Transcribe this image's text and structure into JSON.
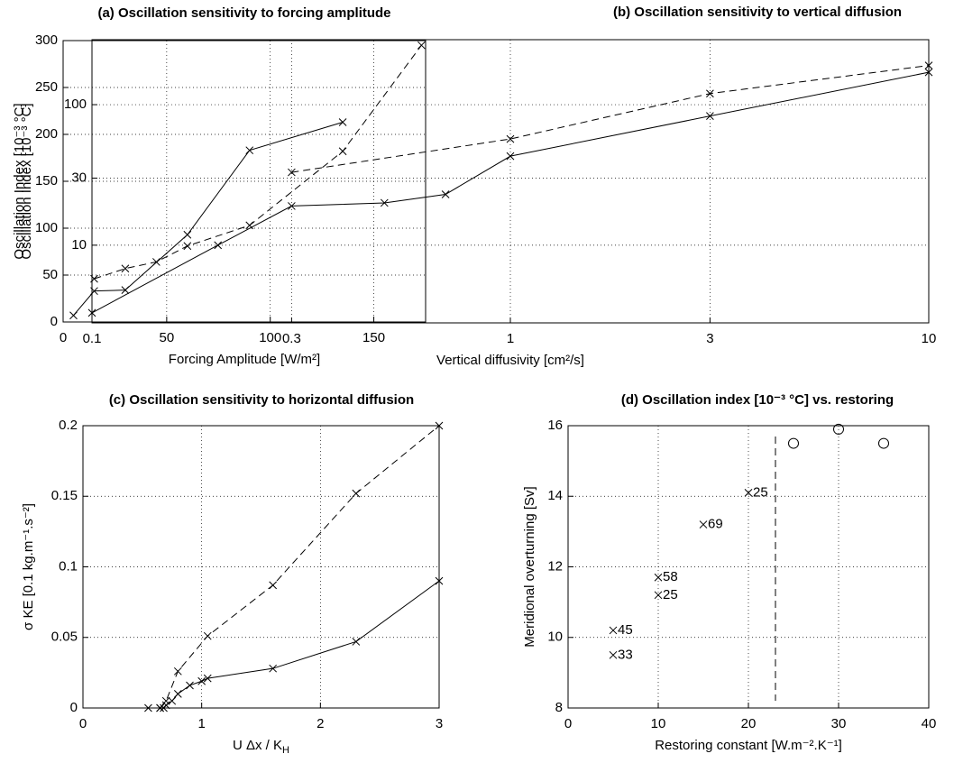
{
  "chart_data": [
    {
      "type": "line",
      "title": "(a) Oscillation sensitivity to forcing amplitude",
      "xlabel": "Forcing Amplitude  [W/m²]",
      "ylabel": "Oscillation Index  [10⁻³ °C]",
      "xlim": [
        0,
        175
      ],
      "ylim": [
        0,
        300
      ],
      "xticks": [
        0,
        50,
        100,
        150
      ],
      "yticks": [
        0,
        50,
        100,
        150,
        200,
        250,
        300
      ],
      "grid": true,
      "series": [
        {
          "color": "#000000",
          "dash": false,
          "x": [
            5,
            15,
            30,
            60,
            90,
            135
          ],
          "values": [
            7,
            33,
            34,
            93,
            183,
            213
          ]
        },
        {
          "color": "#000000",
          "dash": true,
          "x": [
            15,
            30,
            45,
            60,
            90,
            135,
            173
          ],
          "values": [
            46,
            57,
            64,
            81,
            103,
            182,
            295
          ]
        }
      ]
    },
    {
      "type": "line",
      "title": "(b) Oscillation sensitivity to vertical diffusion",
      "xlabel": "Vertical diffusivity  [cm²/s]",
      "ylabel": "Oscillation Index  [10⁻³ °C]",
      "logx": true,
      "logy": true,
      "xlim": [
        0.1,
        10
      ],
      "ylim": [
        2.8,
        290
      ],
      "xticks": [
        0.1,
        0.3,
        1,
        3,
        10
      ],
      "yticks": [
        10,
        30,
        100
      ],
      "grid": true,
      "series": [
        {
          "color": "#000000",
          "dash": false,
          "x": [
            0.1,
            0.2,
            0.3,
            0.5,
            0.7,
            1,
            3,
            10
          ],
          "values": [
            3.3,
            10,
            19,
            20,
            23,
            43,
            83,
            170
          ]
        },
        {
          "color": "#000000",
          "dash": true,
          "x": [
            0.3,
            1,
            3,
            10
          ],
          "values": [
            33,
            57,
            120,
            190
          ]
        }
      ]
    },
    {
      "type": "line",
      "title": "(c) Oscillation sensitivity to horizontal diffusion",
      "xlabel": [
        "U Δx / K",
        "H"
      ],
      "ylabel": "σ KE [0.1 kg.m⁻¹.s⁻²]",
      "xlim": [
        0,
        3
      ],
      "ylim": [
        0,
        0.2
      ],
      "xticks": [
        0,
        1,
        2,
        3
      ],
      "yticks": [
        0,
        0.05,
        0.1,
        0.15,
        0.2
      ],
      "grid": true,
      "series": [
        {
          "color": "#000000",
          "dash": false,
          "x": [
            0.55,
            0.65,
            0.68,
            0.7,
            0.75,
            0.8,
            0.9,
            1.0,
            1.05,
            1.6,
            2.3,
            3
          ],
          "values": [
            0,
            0,
            0,
            0.002,
            0.005,
            0.01,
            0.016,
            0.019,
            0.021,
            0.028,
            0.047,
            0.09
          ]
        },
        {
          "color": "#000000",
          "dash": true,
          "x": [
            0.65,
            0.7,
            0.8,
            1.05,
            1.6,
            2.3,
            3
          ],
          "values": [
            0,
            0.005,
            0.026,
            0.051,
            0.087,
            0.152,
            0.2
          ]
        }
      ]
    },
    {
      "type": "scatter",
      "title": "(d) Oscillation index [10⁻³ °C] vs. restoring",
      "xlabel": "Restoring constant  [W.m⁻².K⁻¹]",
      "ylabel": "Meridional overturning  [Sv]",
      "xlim": [
        0,
        40
      ],
      "ylim": [
        8,
        16
      ],
      "xticks": [
        0,
        10,
        20,
        30,
        40
      ],
      "yticks": [
        8,
        10,
        12,
        14,
        16
      ],
      "grid": true,
      "vline": 23,
      "series": [
        {
          "color": "#000000",
          "marker": "x",
          "x": [
            5,
            5,
            10,
            10,
            15,
            20
          ],
          "values": [
            10.2,
            9.5,
            11.7,
            11.2,
            13.2,
            14.1
          ],
          "labels": [
            45,
            33,
            58,
            25,
            69,
            25
          ]
        },
        {
          "color": "#000000",
          "marker": "o",
          "x": [
            25,
            30,
            35
          ],
          "values": [
            15.5,
            15.9,
            15.5
          ]
        }
      ]
    }
  ]
}
